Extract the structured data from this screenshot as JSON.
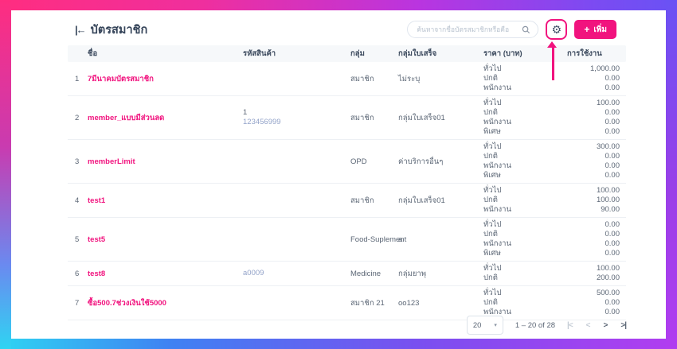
{
  "colors": {
    "accent": "#f1137e",
    "code_muted": "#93a3c9"
  },
  "header": {
    "back_icon_glyph": "|←",
    "title": "บัตรสมาชิก",
    "search": {
      "placeholder": "ค้นหาจากชื่อบัตรสมาชิกหรือคือ",
      "icon_glyph": "🔍"
    },
    "settings_icon_glyph": "⚙",
    "add_button": {
      "plus_glyph": "+",
      "label": "เพิ่ม"
    }
  },
  "table": {
    "columns": {
      "name": "ชื่อ",
      "code": "รหัสสินค้า",
      "group": "กลุ่ม",
      "receipt_group": "กลุ่มใบเสร็จ",
      "price": "ราคา (บาท)",
      "usage": "การใช้งาน"
    },
    "rows": [
      {
        "num": "1",
        "name": "7มีนาคมบัตรสมาชิก",
        "codes": [],
        "group": "สมาชิก",
        "receipt_group": "ไม่ระบุ",
        "prices": [
          [
            "ทั่วไป",
            "1,000.00"
          ],
          [
            "ปกติ",
            "0.00"
          ],
          [
            "พนักงาน",
            "0.00"
          ]
        ]
      },
      {
        "num": "2",
        "name": "member_แบบมีส่วนลด",
        "codes": [
          {
            "text": "1",
            "muted": false
          },
          {
            "text": "123456999",
            "muted": true
          }
        ],
        "group": "สมาชิก",
        "receipt_group": "กลุ่มใบเสร็จ01",
        "prices": [
          [
            "ทั่วไป",
            "100.00"
          ],
          [
            "ปกติ",
            "0.00"
          ],
          [
            "พนักงาน",
            "0.00"
          ],
          [
            "พิเศษ",
            "0.00"
          ]
        ]
      },
      {
        "num": "3",
        "name": "memberLimit",
        "codes": [],
        "group": "OPD",
        "receipt_group": "ค่าบริการอื่นๆ",
        "prices": [
          [
            "ทั่วไป",
            "300.00"
          ],
          [
            "ปกติ",
            "0.00"
          ],
          [
            "พนักงาน",
            "0.00"
          ],
          [
            "พิเศษ",
            "0.00"
          ]
        ]
      },
      {
        "num": "4",
        "name": "test1",
        "codes": [],
        "group": "สมาชิก",
        "receipt_group": "กลุ่มใบเสร็จ01",
        "prices": [
          [
            "ทั่วไป",
            "100.00"
          ],
          [
            "ปกติ",
            "100.00"
          ],
          [
            "พนักงาน",
            "90.00"
          ]
        ]
      },
      {
        "num": "5",
        "name": "test5",
        "codes": [],
        "group": "Food-Suplement",
        "receipt_group": "a",
        "prices": [
          [
            "ทั่วไป",
            "0.00"
          ],
          [
            "ปกติ",
            "0.00"
          ],
          [
            "พนักงาน",
            "0.00"
          ],
          [
            "พิเศษ",
            "0.00"
          ]
        ]
      },
      {
        "num": "6",
        "name": "test8",
        "codes": [
          {
            "text": "a0009",
            "muted": true
          }
        ],
        "group": "Medicine",
        "receipt_group": "กลุ่มยาพุ",
        "prices": [
          [
            "ทั่วไป",
            "100.00"
          ],
          [
            "ปกติ",
            "200.00"
          ]
        ]
      },
      {
        "num": "7",
        "name": "ซื้อ500.7ช่วงเงินใช้5000",
        "codes": [],
        "group": "สมาชิก 21",
        "receipt_group": "oo123",
        "prices": [
          [
            "ทั่วไป",
            "500.00"
          ],
          [
            "ปกติ",
            "0.00"
          ],
          [
            "พนักงาน",
            "0.00"
          ]
        ]
      }
    ]
  },
  "pagination": {
    "page_size": "20",
    "caret_glyph": "▾",
    "range": "1 – 20 of 28",
    "first_glyph": "|<",
    "prev_glyph": "<",
    "next_glyph": ">",
    "last_glyph": ">|"
  }
}
